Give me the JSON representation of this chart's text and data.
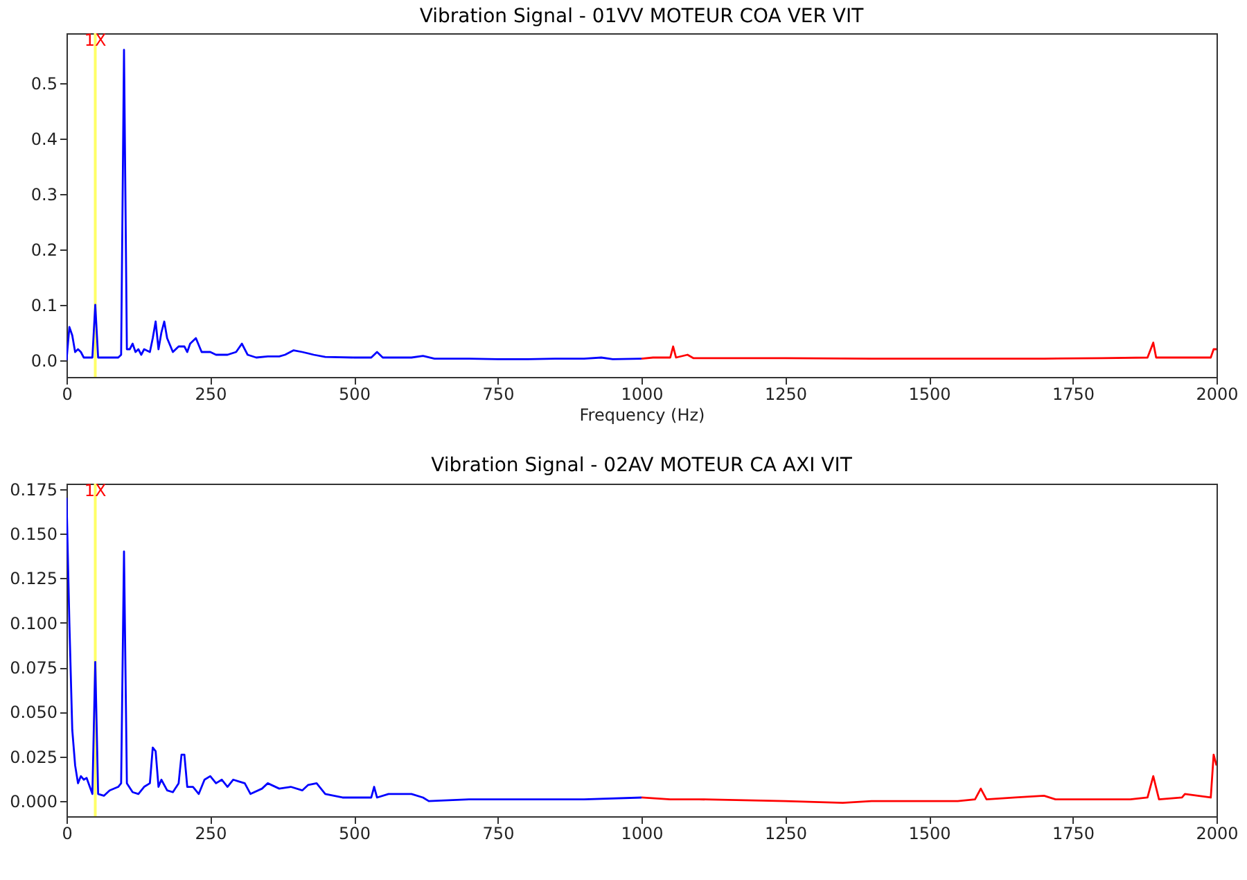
{
  "chart_data": [
    {
      "type": "line",
      "title": "Vibration Signal - 01VV MOTEUR COA VER VIT",
      "xlabel": "Frequency (Hz)",
      "xlim": [
        0,
        2000
      ],
      "xticks": [
        0,
        250,
        500,
        750,
        1000,
        1250,
        1500,
        1750,
        2000
      ],
      "ylim": [
        -0.03,
        0.59
      ],
      "yticks": [
        {
          "value": 0,
          "label": "0.0"
        },
        {
          "value": 0.1,
          "label": "0.1"
        },
        {
          "value": 0.2,
          "label": "0.2"
        },
        {
          "value": 0.3,
          "label": "0.3"
        },
        {
          "value": 0.4,
          "label": "0.4"
        },
        {
          "value": 0.5,
          "label": "0.5"
        }
      ],
      "ref_lines": [
        {
          "axis": "x",
          "value": 50,
          "label": "1X",
          "color": "#ffff66"
        }
      ],
      "series": [
        {
          "color": "#0000ff",
          "x": [
            0,
            5,
            10,
            15,
            20,
            25,
            30,
            45,
            50,
            55,
            70,
            90,
            95,
            100,
            105,
            110,
            115,
            120,
            125,
            130,
            135,
            145,
            150,
            155,
            160,
            165,
            170,
            175,
            185,
            195,
            205,
            210,
            215,
            225,
            235,
            250,
            260,
            280,
            295,
            305,
            315,
            330,
            350,
            370,
            380,
            395,
            410,
            430,
            450,
            500,
            530,
            540,
            550,
            600,
            620,
            640,
            700,
            750,
            800,
            850,
            900,
            930,
            950,
            1000
          ],
          "values": [
            0.0,
            0.06,
            0.045,
            0.015,
            0.02,
            0.015,
            0.005,
            0.005,
            0.1,
            0.005,
            0.005,
            0.005,
            0.01,
            0.56,
            0.02,
            0.02,
            0.03,
            0.015,
            0.02,
            0.01,
            0.02,
            0.015,
            0.04,
            0.07,
            0.02,
            0.05,
            0.07,
            0.04,
            0.015,
            0.025,
            0.025,
            0.015,
            0.03,
            0.04,
            0.015,
            0.015,
            0.01,
            0.01,
            0.015,
            0.03,
            0.01,
            0.005,
            0.007,
            0.007,
            0.01,
            0.018,
            0.015,
            0.01,
            0.006,
            0.005,
            0.005,
            0.015,
            0.005,
            0.005,
            0.008,
            0.003,
            0.003,
            0.002,
            0.002,
            0.003,
            0.003,
            0.005,
            0.002,
            0.003
          ]
        },
        {
          "color": "#ff0000",
          "x": [
            1000,
            1020,
            1040,
            1050,
            1055,
            1060,
            1080,
            1090,
            1150,
            1250,
            1400,
            1500,
            1600,
            1700,
            1800,
            1880,
            1890,
            1895,
            1950,
            1990,
            1995,
            2000
          ],
          "values": [
            0.003,
            0.005,
            0.005,
            0.005,
            0.025,
            0.005,
            0.01,
            0.004,
            0.004,
            0.004,
            0.003,
            0.003,
            0.003,
            0.003,
            0.004,
            0.005,
            0.032,
            0.005,
            0.005,
            0.005,
            0.02,
            0.02
          ]
        }
      ]
    },
    {
      "type": "line",
      "title": "Vibration Signal - 02AV MOTEUR CA AXI VIT",
      "xlim": [
        0,
        2000
      ],
      "xticks": [
        0,
        250,
        500,
        750,
        1000,
        1250,
        1500,
        1750,
        2000
      ],
      "ylim": [
        -0.0085,
        0.178
      ],
      "yticks": [
        {
          "value": 0,
          "label": "0.000"
        },
        {
          "value": 0.025,
          "label": "0.025"
        },
        {
          "value": 0.05,
          "label": "0.050"
        },
        {
          "value": 0.075,
          "label": "0.075"
        },
        {
          "value": 0.1,
          "label": "0.100"
        },
        {
          "value": 0.125,
          "label": "0.125"
        },
        {
          "value": 0.15,
          "label": "0.150"
        },
        {
          "value": 0.175,
          "label": "0.175"
        }
      ],
      "ref_lines": [
        {
          "axis": "x",
          "value": 50,
          "label": "1X",
          "color": "#ffff66"
        }
      ],
      "series": [
        {
          "color": "#0000ff",
          "x": [
            0,
            5,
            10,
            15,
            20,
            25,
            30,
            35,
            45,
            50,
            55,
            65,
            75,
            90,
            95,
            100,
            105,
            115,
            125,
            135,
            145,
            150,
            155,
            160,
            165,
            175,
            185,
            195,
            200,
            205,
            210,
            220,
            230,
            240,
            250,
            260,
            270,
            280,
            290,
            300,
            310,
            320,
            340,
            350,
            370,
            390,
            410,
            420,
            435,
            450,
            480,
            530,
            535,
            540,
            560,
            600,
            620,
            630,
            700,
            800,
            900,
            1000
          ],
          "values": [
            0.17,
            0.1,
            0.04,
            0.02,
            0.01,
            0.014,
            0.012,
            0.013,
            0.004,
            0.078,
            0.004,
            0.003,
            0.006,
            0.008,
            0.01,
            0.14,
            0.01,
            0.005,
            0.004,
            0.008,
            0.01,
            0.03,
            0.028,
            0.008,
            0.012,
            0.006,
            0.005,
            0.01,
            0.026,
            0.026,
            0.008,
            0.008,
            0.004,
            0.012,
            0.014,
            0.01,
            0.012,
            0.008,
            0.012,
            0.011,
            0.01,
            0.004,
            0.007,
            0.01,
            0.007,
            0.008,
            0.006,
            0.009,
            0.01,
            0.004,
            0.002,
            0.002,
            0.008,
            0.002,
            0.004,
            0.004,
            0.002,
            0.0,
            0.001,
            0.001,
            0.001,
            0.002
          ]
        },
        {
          "color": "#ff0000",
          "x": [
            1000,
            1050,
            1100,
            1250,
            1350,
            1400,
            1550,
            1580,
            1590,
            1600,
            1650,
            1700,
            1720,
            1850,
            1880,
            1890,
            1900,
            1940,
            1945,
            1990,
            1995,
            2000
          ],
          "values": [
            0.002,
            0.001,
            0.001,
            0.0,
            -0.001,
            0.0,
            0.0,
            0.001,
            0.007,
            0.001,
            0.002,
            0.003,
            0.001,
            0.001,
            0.002,
            0.014,
            0.001,
            0.002,
            0.004,
            0.002,
            0.026,
            0.02
          ]
        }
      ]
    }
  ]
}
